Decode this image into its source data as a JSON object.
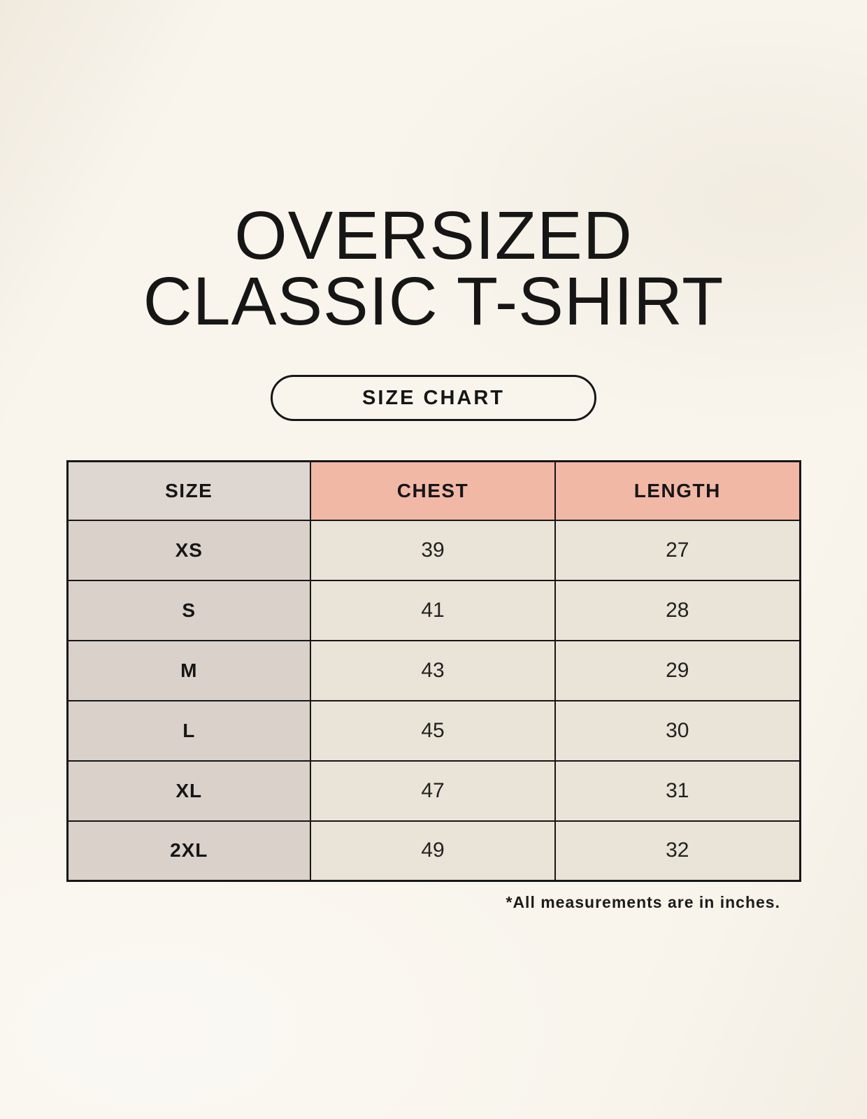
{
  "theme": {
    "page_bg": "#f9f5ed",
    "text_color": "#161616",
    "border_color": "#171717",
    "header_size_bg": "#ded6d0",
    "header_measure_bg": "#f1b8a6",
    "body_size_bg": "#d9d1ca",
    "body_value_bg": "#eae3d8"
  },
  "title": {
    "line1": "OVERSIZED",
    "line2": "CLASSIC T-SHIRT"
  },
  "size_chart_button": {
    "label": "SIZE CHART"
  },
  "table": {
    "columns": [
      "SIZE",
      "CHEST",
      "LENGTH"
    ],
    "rows": [
      {
        "size": "XS",
        "chest": "39",
        "length": "27"
      },
      {
        "size": "S",
        "chest": "41",
        "length": "28"
      },
      {
        "size": "M",
        "chest": "43",
        "length": "29"
      },
      {
        "size": "L",
        "chest": "45",
        "length": "30"
      },
      {
        "size": "XL",
        "chest": "47",
        "length": "31"
      },
      {
        "size": "2XL",
        "chest": "49",
        "length": "32"
      }
    ],
    "units_note": "inches"
  },
  "footnote": "*All measurements are in inches."
}
